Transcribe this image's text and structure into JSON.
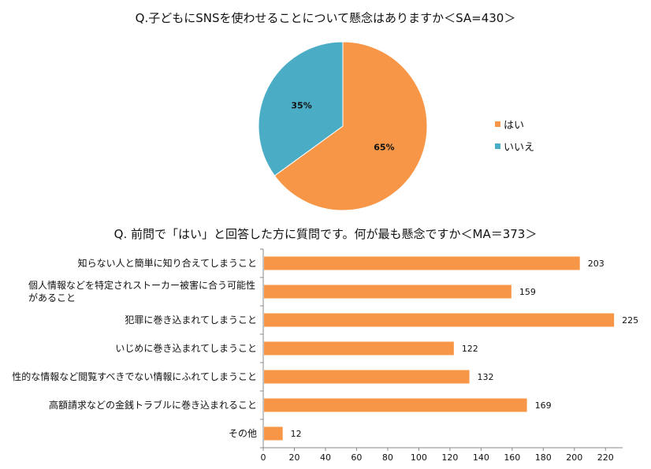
{
  "chart_data": [
    {
      "type": "pie",
      "title": "Q.子どもにSNSを使わせることについて懸念はありますか＜SA=430＞",
      "slices": [
        {
          "label": "はい",
          "value": 65,
          "display": "65%",
          "color": "#f79646"
        },
        {
          "label": "いいえ",
          "value": 35,
          "display": "35%",
          "color": "#4bacc6"
        }
      ],
      "legend_position": "right"
    },
    {
      "type": "bar",
      "orientation": "horizontal",
      "title": "Q. 前問で「はい」と回答した方に質問です。何が最も懸念ですか＜MA＝373＞",
      "categories": [
        "知らない人と簡単に知り合えてしまうこと",
        "個人情報などを特定されストーカー被害に合う可能性があること",
        "犯罪に巻き込まれてしまうこと",
        "いじめに巻き込まれてしまうこと",
        "性的な情報など閲覧すべきでない情報にふれてしまうこと",
        "高額請求などの金銭トラブルに巻き込まれること",
        "その他"
      ],
      "values": [
        203,
        159,
        225,
        122,
        132,
        169,
        12
      ],
      "xlim": [
        0,
        230
      ],
      "xticks": [
        "0",
        "20",
        "40",
        "60",
        "80",
        "100",
        "120",
        "140",
        "160",
        "180",
        "200",
        "220"
      ],
      "bar_color": "#f79646",
      "grid": false
    }
  ]
}
